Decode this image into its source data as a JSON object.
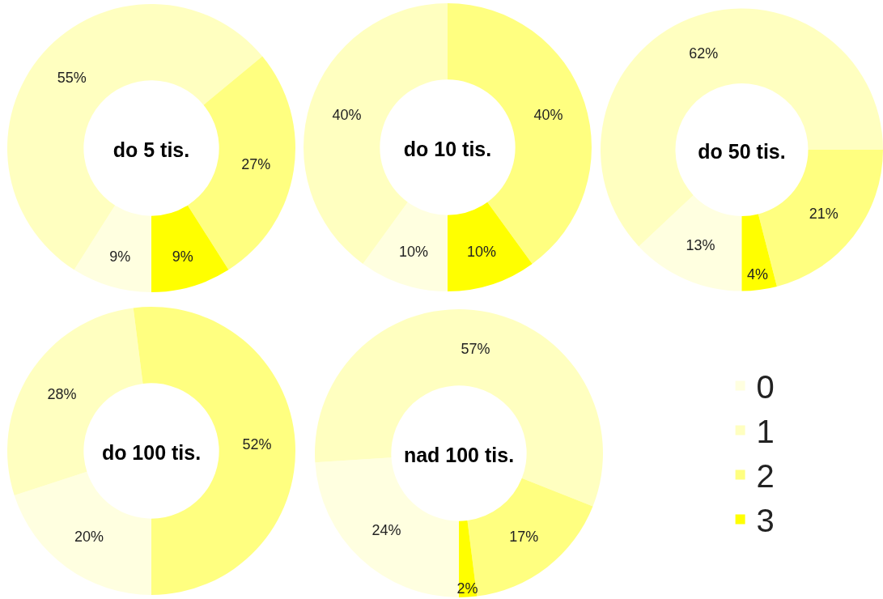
{
  "chart_data": [
    {
      "type": "donut",
      "title": "do 5 tis.",
      "categories": [
        "0",
        "1",
        "2",
        "3"
      ],
      "values": [
        9,
        55,
        27,
        9
      ],
      "value_labels": [
        "9%",
        "55%",
        "27%",
        "9%"
      ],
      "colors": [
        "#ffffe0",
        "#ffffc0",
        "#ffff80",
        "#ffff00"
      ],
      "legend": "right"
    },
    {
      "type": "donut",
      "title": "do 10 tis.",
      "categories": [
        null,
        null,
        null,
        null
      ],
      "values": [
        10,
        40,
        40,
        10
      ],
      "value_labels": [
        "10%",
        "40%",
        "40%",
        "10%"
      ],
      "colors": [
        "#ffffe0",
        "#ffffc0",
        "#ffff80",
        "#ffff00"
      ]
    },
    {
      "type": "donut",
      "title": "do 50 tis.",
      "categories": [
        null,
        null,
        null,
        null
      ],
      "values": [
        13,
        62,
        21,
        4
      ],
      "value_labels": [
        "13%",
        "62%",
        "21%",
        "4%"
      ],
      "colors": [
        "#ffffe0",
        "#ffffc0",
        "#ffff80",
        "#ffff00"
      ]
    },
    {
      "type": "donut",
      "title": "do 100 tis.",
      "categories": [
        null,
        null,
        null,
        null
      ],
      "values": [
        20,
        28,
        52,
        0
      ],
      "value_labels": [
        "20%",
        "28%",
        "52%",
        null
      ],
      "colors": [
        "#ffffe0",
        "#ffffc0",
        "#ffff80",
        "#ffff00"
      ]
    },
    {
      "type": "donut",
      "title": "nad 100 tis.",
      "categories": [
        null,
        null,
        null,
        null
      ],
      "values": [
        24,
        57,
        17,
        2
      ],
      "value_labels": [
        "24%",
        "57%",
        "17%",
        "2%"
      ],
      "colors": [
        "#ffffe0",
        "#ffffc0",
        "#ffff80",
        "#ffff00"
      ]
    }
  ]
}
